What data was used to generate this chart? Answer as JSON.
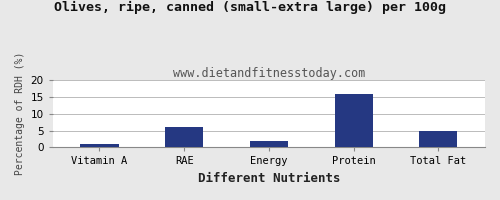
{
  "title": "Olives, ripe, canned (small-extra large) per 100g",
  "subtitle": "www.dietandfitnesstoday.com",
  "categories": [
    "Vitamin A",
    "RAE",
    "Energy",
    "Protein",
    "Total Fat"
  ],
  "values": [
    1,
    6,
    2,
    16,
    5
  ],
  "bar_color": "#253882",
  "xlabel": "Different Nutrients",
  "ylabel": "Percentage of RDH (%)",
  "ylim": [
    0,
    20
  ],
  "yticks": [
    0,
    5,
    10,
    15,
    20
  ],
  "background_color": "#e8e8e8",
  "plot_bg_color": "#ffffff",
  "title_fontsize": 9.5,
  "subtitle_fontsize": 8.5,
  "xlabel_fontsize": 9,
  "ylabel_fontsize": 7,
  "tick_fontsize": 7.5,
  "bar_width": 0.45
}
